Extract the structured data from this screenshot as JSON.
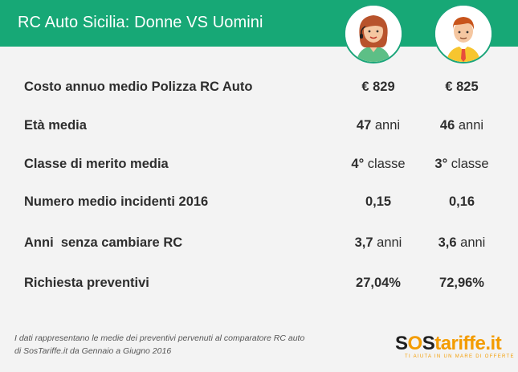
{
  "header": {
    "title": "RC Auto Sicilia: Donne VS Uomini",
    "bg_color": "#17a876",
    "avatars": [
      "woman-avatar-icon",
      "man-avatar-icon"
    ]
  },
  "rows": [
    {
      "label": "Costo annuo medio Polizza RC Auto",
      "women": {
        "value": "€ 829",
        "unit": ""
      },
      "men": {
        "value": "€ 825",
        "unit": ""
      }
    },
    {
      "label": "Età media",
      "women": {
        "value": "47",
        "unit": "anni"
      },
      "men": {
        "value": "46",
        "unit": "anni"
      }
    },
    {
      "label": "Classe di merito media",
      "women": {
        "value": "4°",
        "unit": "classe"
      },
      "men": {
        "value": "3°",
        "unit": "classe"
      }
    },
    {
      "label": "Numero medio incidenti 2016",
      "women": {
        "value": "0,15",
        "unit": ""
      },
      "men": {
        "value": "0,16",
        "unit": ""
      }
    },
    {
      "label": "Anni  senza cambiare RC",
      "women": {
        "value": "3,7",
        "unit": "anni"
      },
      "men": {
        "value": "3,6",
        "unit": "anni"
      }
    },
    {
      "label": "Richiesta preventivi",
      "women": {
        "value": "27,04%",
        "unit": ""
      },
      "men": {
        "value": "72,96%",
        "unit": ""
      }
    }
  ],
  "footnote": {
    "line1": "I dati rappresentano le medie dei preventivi pervenuti al comparatore RC auto",
    "line2": "di SosTariffe.it da Gennaio a Giugno 2016"
  },
  "logo": {
    "part_s1": "S",
    "part_o": "O",
    "part_s2": "S",
    "part_rest": "tariffe.it",
    "tagline": "TI AIUTA IN UN MARE DI OFFERTE",
    "accent_color": "#f39c00"
  }
}
